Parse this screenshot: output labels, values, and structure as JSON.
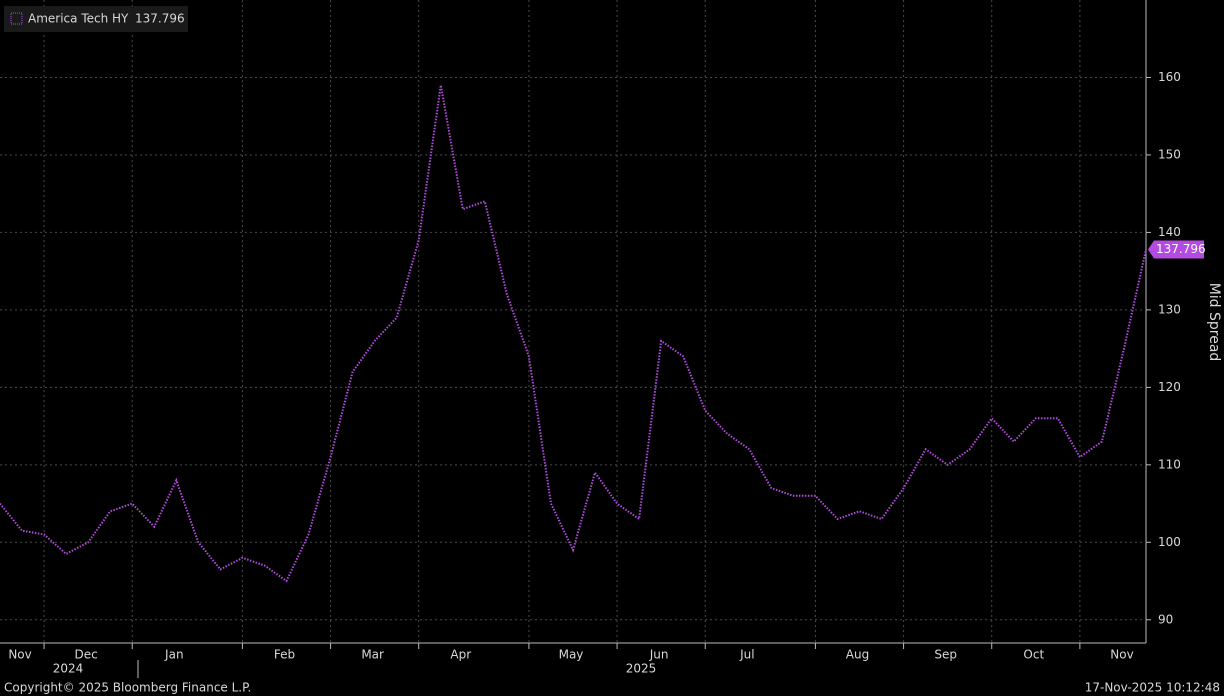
{
  "chart_data": {
    "type": "line",
    "categories": [
      null,
      "Nov",
      null,
      null,
      "Dec",
      null,
      null,
      null,
      "Jan",
      null,
      null,
      null,
      null,
      "Feb",
      null,
      null,
      null,
      "Mar",
      null,
      null,
      null,
      "Apr",
      null,
      null,
      null,
      null,
      "May",
      null,
      null,
      null,
      "Jun",
      null,
      null,
      null,
      "Jul",
      null,
      null,
      null,
      null,
      "Aug",
      null,
      null,
      null,
      "Sep",
      null,
      null,
      null,
      "Oct",
      null,
      null,
      null,
      "Nov",
      null
    ],
    "year_labels": [
      "2024",
      "2025"
    ],
    "series": [
      {
        "name": "America Tech HY",
        "color": "#b44be1",
        "values": [
          105,
          101.5,
          101,
          98.5,
          100,
          104,
          105,
          102,
          108,
          100,
          96.5,
          98,
          97,
          95,
          101,
          111,
          122,
          126,
          129,
          139,
          159,
          143,
          144,
          132,
          124,
          105,
          99,
          109,
          105,
          103,
          126,
          124,
          117,
          114,
          112,
          107,
          106,
          106,
          103,
          104,
          103,
          107,
          112,
          110,
          112,
          116,
          113,
          116,
          116,
          111,
          113,
          125,
          137.796
        ]
      }
    ],
    "ylabel": "Mid Spread",
    "ylim": [
      87,
      170
    ],
    "yticks": [
      90,
      100,
      110,
      120,
      130,
      140,
      150,
      160
    ],
    "grid": true,
    "footer_left": "Copyright© 2025 Bloomberg Finance L.P.",
    "footer_right": "17-Nov-2025 10:12:48"
  }
}
